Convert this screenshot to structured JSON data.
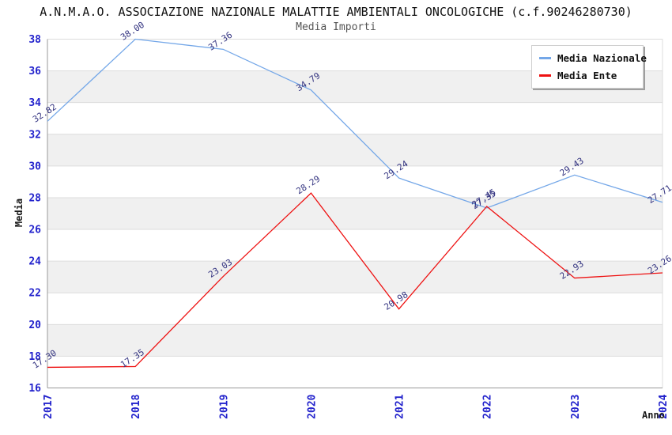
{
  "chart_data": {
    "type": "line",
    "title": "A.N.M.A.O. ASSOCIAZIONE NAZIONALE MALATTIE AMBIENTALI ONCOLOGICHE (c.f.90246280730)",
    "subtitle": "Media Importi",
    "xlabel": "Anno",
    "ylabel": "Media",
    "categories": [
      "2017",
      "2018",
      "2019",
      "2020",
      "2021",
      "2022",
      "2023",
      "2024"
    ],
    "ylim": [
      16,
      38
    ],
    "ytick_step": 2,
    "grid": "horizontal-bands-alternating",
    "legend_position": "top-right",
    "series": [
      {
        "name": "Media Nazionale",
        "color": "#74a7e8",
        "values": [
          32.82,
          38.0,
          37.36,
          34.79,
          29.24,
          27.35,
          29.43,
          27.71
        ]
      },
      {
        "name": "Media Ente",
        "color": "#ee1111",
        "values": [
          17.3,
          17.35,
          23.03,
          28.29,
          20.98,
          27.45,
          22.93,
          23.26
        ]
      }
    ]
  },
  "colors": {
    "tick_label": "#2222cc",
    "data_label": "#333380",
    "band_gray": "#f0f0f0",
    "band_white": "#ffffff",
    "gridline": "#dcdcdc",
    "axis": "#9a9a9a",
    "title": "#111111",
    "subtitle": "#555555",
    "legend_bg": "#ffffff"
  }
}
